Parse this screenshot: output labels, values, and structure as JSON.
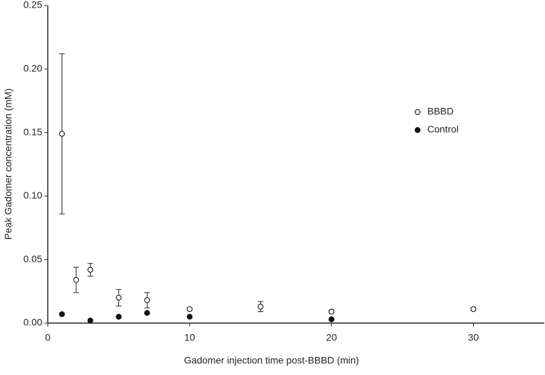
{
  "chart_data": {
    "type": "scatter",
    "xlabel": "Gadomer injection time post-BBBD (min)",
    "ylabel": "Peak Gadomer concentration (mM)",
    "xlim": [
      0,
      35
    ],
    "xticks": [
      0,
      10,
      20,
      30
    ],
    "ylim": [
      0,
      0.25
    ],
    "yticks": [
      {
        "value": 0,
        "label": "0.00"
      },
      {
        "value": 0.05,
        "label": "0.05"
      },
      {
        "value": 0.1,
        "label": "0.10"
      },
      {
        "value": 0.15,
        "label": "0.15"
      },
      {
        "value": 0.2,
        "label": "0.20"
      },
      {
        "value": 0.25,
        "label": "0.25"
      }
    ],
    "grid": false,
    "legend": "right",
    "series": [
      {
        "name": "BBBD",
        "color": "#222222",
        "marker": "open",
        "x": [
          1,
          2,
          3,
          5,
          7,
          10,
          15,
          20,
          30
        ],
        "values": [
          0.149,
          0.034,
          0.042,
          0.02,
          0.018,
          0.011,
          0.013,
          0.009,
          0.011
        ],
        "errors": [
          0.063,
          0.01,
          0.005,
          0.0065,
          0.006,
          0.001,
          0.004,
          0.001,
          0.001
        ]
      },
      {
        "name": "Control",
        "color": "#111111",
        "marker": "filled",
        "x": [
          1,
          3,
          5,
          7,
          10,
          20
        ],
        "values": [
          0.007,
          0.002,
          0.005,
          0.008,
          0.005,
          0.003
        ]
      }
    ]
  }
}
